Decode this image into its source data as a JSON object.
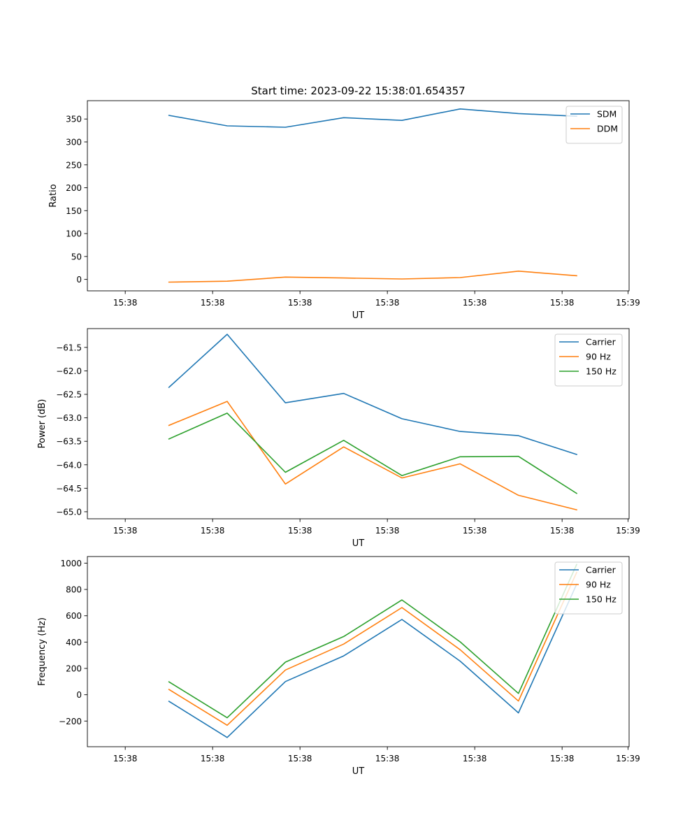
{
  "figure_title": "Start time: 2023-09-22 15:38:01.654357",
  "colors": {
    "blue": "#1f77b4",
    "orange": "#ff7f0e",
    "green": "#2ca02c"
  },
  "chart_data": [
    {
      "type": "line",
      "title": "Start time: 2023-09-22 15:38:01.654357",
      "xlabel": "UT",
      "ylabel": "Ratio",
      "x": [
        1,
        2,
        3,
        4,
        5,
        6,
        7,
        8
      ],
      "x_tick_values": [
        0.25,
        1.75,
        3.25,
        4.75,
        6.25,
        7.75
      ],
      "x_tick_labels": [
        "15:38",
        "15:38",
        "15:38",
        "15:38",
        "15:38",
        "15:38"
      ],
      "xlim": [
        -0.4,
        8.9
      ],
      "x_end_tick_label": "15:39",
      "ylim": [
        -25,
        390
      ],
      "y_ticks": [
        0,
        50,
        100,
        150,
        200,
        250,
        300,
        350
      ],
      "y_tick_labels": [
        "0",
        "50",
        "100",
        "150",
        "200",
        "250",
        "300",
        "350"
      ],
      "legend": "top-right",
      "series": [
        {
          "name": "SDM",
          "color": "#1f77b4",
          "values": [
            358,
            335,
            332,
            353,
            347,
            372,
            362,
            356
          ]
        },
        {
          "name": "DDM",
          "color": "#ff7f0e",
          "values": [
            -6,
            -4,
            5,
            3,
            1,
            4,
            18,
            8
          ]
        }
      ]
    },
    {
      "type": "line",
      "title": "",
      "xlabel": "UT",
      "ylabel": "Power (dB)",
      "x": [
        1,
        2,
        3,
        4,
        5,
        6,
        7,
        8
      ],
      "x_tick_values": [
        0.25,
        1.75,
        3.25,
        4.75,
        6.25,
        7.75
      ],
      "x_tick_labels": [
        "15:38",
        "15:38",
        "15:38",
        "15:38",
        "15:38",
        "15:38"
      ],
      "xlim": [
        -0.4,
        8.9
      ],
      "x_end_tick_label": "15:39",
      "ylim": [
        -65.15,
        -61.1
      ],
      "y_ticks": [
        -65.0,
        -64.5,
        -64.0,
        -63.5,
        -63.0,
        -62.5,
        -62.0,
        -61.5
      ],
      "y_tick_labels": [
        "−65.0",
        "−64.5",
        "−64.0",
        "−63.5",
        "−63.0",
        "−62.5",
        "−62.0",
        "−61.5"
      ],
      "legend": "top-right",
      "series": [
        {
          "name": "Carrier",
          "color": "#1f77b4",
          "values": [
            -62.35,
            -61.22,
            -62.68,
            -62.48,
            -63.02,
            -63.29,
            -63.38,
            -63.78
          ]
        },
        {
          "name": "90 Hz",
          "color": "#ff7f0e",
          "values": [
            -63.16,
            -62.65,
            -64.41,
            -63.62,
            -64.28,
            -63.98,
            -64.65,
            -64.96
          ]
        },
        {
          "name": "150 Hz",
          "color": "#2ca02c",
          "values": [
            -63.45,
            -62.9,
            -64.16,
            -63.48,
            -64.23,
            -63.83,
            -63.82,
            -64.61
          ]
        }
      ]
    },
    {
      "type": "line",
      "title": "",
      "xlabel": "UT",
      "ylabel": "Frequency (Hz)",
      "x": [
        1,
        2,
        3,
        4,
        5,
        6,
        7,
        8
      ],
      "x_tick_values": [
        0.25,
        1.75,
        3.25,
        4.75,
        6.25,
        7.75
      ],
      "x_tick_labels": [
        "15:38",
        "15:38",
        "15:38",
        "15:38",
        "15:38",
        "15:38"
      ],
      "xlim": [
        -0.4,
        8.9
      ],
      "x_end_tick_label": "15:39",
      "ylim": [
        -395,
        1050
      ],
      "y_ticks": [
        -200,
        0,
        200,
        400,
        600,
        800,
        1000
      ],
      "y_tick_labels": [
        "−200",
        "0",
        "200",
        "400",
        "600",
        "800",
        "1000"
      ],
      "legend": "top-right",
      "series": [
        {
          "name": "Carrier",
          "color": "#1f77b4",
          "values": [
            -50,
            -325,
            100,
            295,
            572,
            255,
            -138,
            840
          ]
        },
        {
          "name": "90 Hz",
          "color": "#ff7f0e",
          "values": [
            40,
            -232,
            188,
            385,
            662,
            342,
            -48,
            930
          ]
        },
        {
          "name": "150 Hz",
          "color": "#2ca02c",
          "values": [
            98,
            -175,
            248,
            442,
            720,
            402,
            10,
            990
          ]
        }
      ]
    }
  ]
}
